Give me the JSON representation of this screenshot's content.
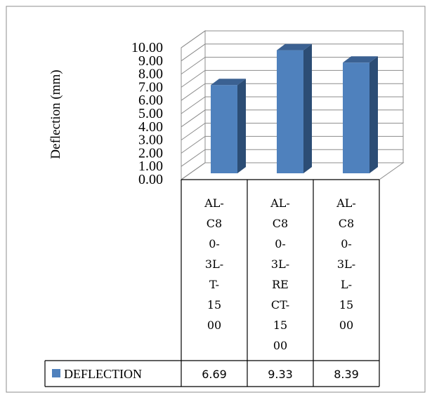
{
  "chart_data": {
    "type": "bar",
    "style": "3d-column-with-data-table",
    "title": "",
    "ylabel": "Deflection (mm)",
    "xlabel": "",
    "ylim": [
      0,
      10
    ],
    "yticks": [
      "0.00",
      "1.00",
      "2.00",
      "3.00",
      "4.00",
      "5.00",
      "6.00",
      "7.00",
      "8.00",
      "9.00",
      "10.00"
    ],
    "grid": true,
    "categories": [
      [
        "AL-",
        "C8",
        "0-",
        "3L-",
        "T-",
        "15",
        "00"
      ],
      [
        "AL-",
        "C8",
        "0-",
        "3L-",
        "RE",
        "CT-",
        "15",
        "00"
      ],
      [
        "AL-",
        "C8",
        "0-",
        "3L-",
        "L-",
        "15",
        "00"
      ]
    ],
    "series": [
      {
        "name": "DEFLECTION",
        "values": [
          6.69,
          9.33,
          8.39
        ],
        "labels": [
          "6.69",
          "9.33",
          "8.39"
        ],
        "color": "#4f81bd"
      }
    ]
  }
}
